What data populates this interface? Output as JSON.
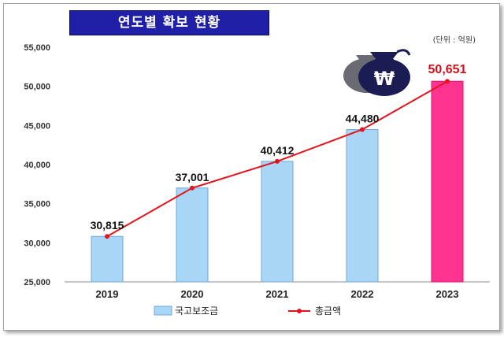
{
  "title": "연도별 확보 현황",
  "unit_note": "(단위 : 억원)",
  "icon": "money-bag-won-icon",
  "colors": {
    "bar": "#a9d6f7",
    "bar_stroke": "#6fa9d6",
    "bar_highlight": "#ff3390",
    "line": "#e4141c",
    "title_bg": "#1f1fa8"
  },
  "chart_data": {
    "type": "bar",
    "categories": [
      "2019",
      "2020",
      "2021",
      "2022",
      "2023"
    ],
    "series": [
      {
        "name": "국고보조금",
        "type": "bar",
        "values": [
          30815,
          37001,
          40412,
          44480,
          50651
        ]
      },
      {
        "name": "총금액",
        "type": "line",
        "values": [
          30815,
          37001,
          40412,
          44480,
          50651
        ]
      }
    ],
    "data_labels": [
      "30,815",
      "37,001",
      "40,412",
      "44,480",
      "50,651"
    ],
    "highlight_index": 4,
    "ylim": [
      25000,
      55000
    ],
    "yticks": [
      "25,000",
      "30,000",
      "35,000",
      "40,000",
      "45,000",
      "50,000",
      "55,000"
    ],
    "ytick_values": [
      25000,
      30000,
      35000,
      40000,
      45000,
      50000,
      55000
    ],
    "grid": false,
    "legend_position": "bottom"
  }
}
